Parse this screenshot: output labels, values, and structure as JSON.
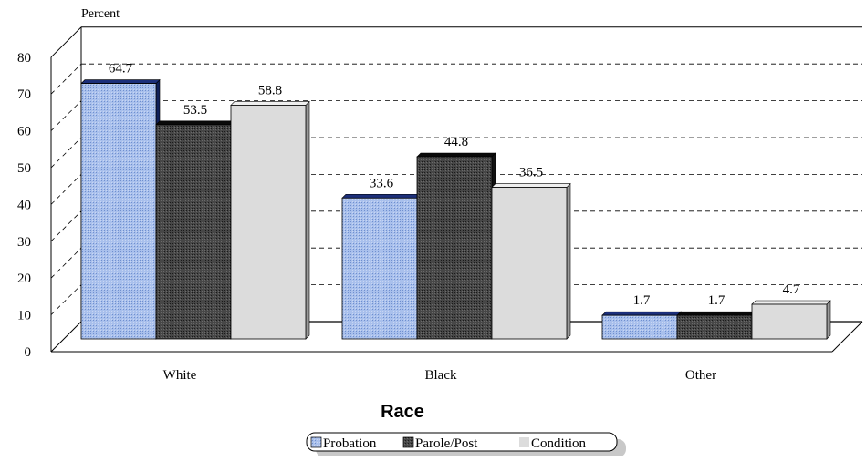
{
  "chart_data": {
    "type": "bar",
    "title": "",
    "ylabel": "Percent",
    "xlabel": "Race",
    "ylim": [
      0,
      80
    ],
    "yticks": [
      0,
      10,
      20,
      30,
      40,
      50,
      60,
      70,
      80
    ],
    "categories": [
      "White",
      "Black",
      "Other"
    ],
    "series": [
      {
        "name": "Probation",
        "values": [
          64.7,
          33.6,
          1.7
        ],
        "labels": [
          "64.7",
          "33.6",
          "1.7"
        ],
        "color": "#9DB5E6",
        "top_color": "#1C2F7A"
      },
      {
        "name": "Parole/Post",
        "values": [
          53.5,
          44.8,
          1.7
        ],
        "labels": [
          "53.5",
          "44.8",
          "1.7"
        ],
        "color": "#3A3A3A",
        "top_color": "#0A0A0A"
      },
      {
        "name": "Condition",
        "values": [
          58.8,
          36.5,
          4.7
        ],
        "labels": [
          "58.8",
          "36.5",
          "4.7"
        ],
        "color": "#D9D9D9",
        "top_color": "#EFEFEF"
      }
    ],
    "grid": true,
    "legend_position": "bottom"
  }
}
